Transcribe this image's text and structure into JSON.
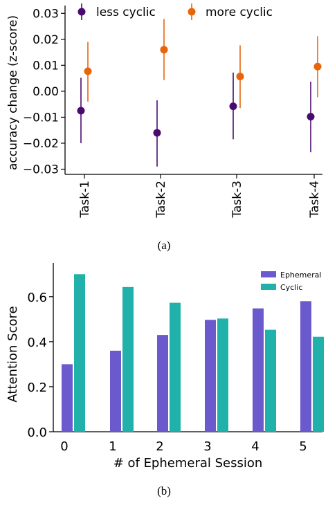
{
  "caption_a": "(a)",
  "caption_b": "(b)",
  "chart_data": [
    {
      "type": "scatter",
      "errorbars": true,
      "categories": [
        "Task-1",
        "Task-2",
        "Task-3",
        "Task-4"
      ],
      "ylabel": "accuracy change (z-score)",
      "ylim": [
        -0.032,
        0.033
      ],
      "yticks": [
        -0.03,
        -0.02,
        -0.01,
        0.0,
        0.01,
        0.02,
        0.03
      ],
      "ytick_labels": [
        "−0.03",
        "−0.02",
        "−0.01",
        "0.00",
        "0.01",
        "0.02",
        "0.03"
      ],
      "legend_position": "top",
      "series": [
        {
          "name": "less cyclic",
          "color": "#4b0a6e",
          "values": [
            -0.0075,
            -0.016,
            -0.0058,
            -0.0098
          ],
          "err_low": [
            -0.02,
            -0.029,
            -0.0185,
            -0.0235
          ],
          "err_high": [
            0.0052,
            -0.0035,
            0.0072,
            0.0037
          ]
        },
        {
          "name": "more cyclic",
          "color": "#e8650c",
          "values": [
            0.0077,
            0.016,
            0.0057,
            0.0095
          ],
          "err_low": [
            -0.004,
            0.0043,
            -0.0065,
            -0.0023
          ],
          "err_high": [
            0.019,
            0.0278,
            0.0177,
            0.0212
          ]
        }
      ]
    },
    {
      "type": "bar",
      "categories": [
        "0",
        "1",
        "2",
        "3",
        "4",
        "5"
      ],
      "xlabel": "# of Ephemeral Session",
      "ylabel": "Attention Score",
      "ylim": [
        0,
        0.75
      ],
      "yticks": [
        0.0,
        0.2,
        0.4,
        0.6
      ],
      "ytick_labels": [
        "0.0",
        "0.2",
        "0.4",
        "0.6"
      ],
      "legend_position": "top-right",
      "series": [
        {
          "name": "Ephemeral",
          "color": "#6a5acd",
          "values": [
            0.3,
            0.36,
            0.43,
            0.497,
            0.548,
            0.58
          ]
        },
        {
          "name": "Cyclic",
          "color": "#20b2aa",
          "values": [
            0.7,
            0.643,
            0.573,
            0.503,
            0.453,
            0.422
          ]
        }
      ]
    }
  ]
}
